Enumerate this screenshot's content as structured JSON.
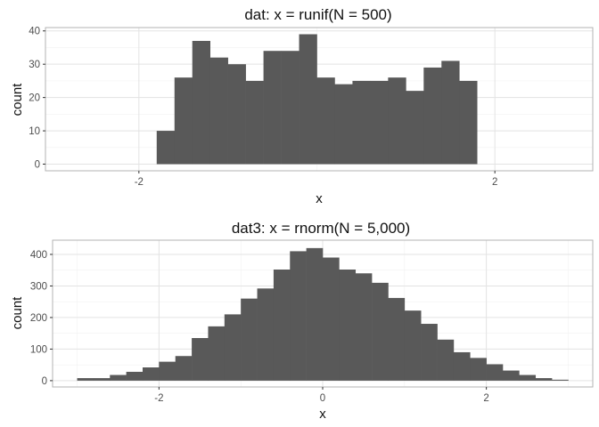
{
  "chart_data": [
    {
      "type": "bar",
      "title": "dat: x = runif(N = 500)",
      "xlabel": "x",
      "ylabel": "count",
      "xlim": [
        -3.05,
        3.1
      ],
      "ylim": [
        -2,
        41
      ],
      "xticks": [
        -2,
        2
      ],
      "yticks": [
        0,
        10,
        20,
        30,
        40
      ],
      "grid": true,
      "bar_color": "#595959",
      "bins": [
        {
          "x0": -1.8,
          "x1": -1.6,
          "count": 10
        },
        {
          "x0": -1.6,
          "x1": -1.4,
          "count": 26
        },
        {
          "x0": -1.4,
          "x1": -1.2,
          "count": 37
        },
        {
          "x0": -1.2,
          "x1": -1.0,
          "count": 32
        },
        {
          "x0": -1.0,
          "x1": -0.8,
          "count": 30
        },
        {
          "x0": -0.8,
          "x1": -0.6,
          "count": 25
        },
        {
          "x0": -0.6,
          "x1": -0.4,
          "count": 34
        },
        {
          "x0": -0.4,
          "x1": -0.2,
          "count": 34
        },
        {
          "x0": -0.2,
          "x1": 0.0,
          "count": 39
        },
        {
          "x0": 0.0,
          "x1": 0.2,
          "count": 26
        },
        {
          "x0": 0.2,
          "x1": 0.4,
          "count": 24
        },
        {
          "x0": 0.4,
          "x1": 0.6,
          "count": 25
        },
        {
          "x0": 0.6,
          "x1": 0.8,
          "count": 25
        },
        {
          "x0": 0.8,
          "x1": 1.0,
          "count": 26
        },
        {
          "x0": 1.0,
          "x1": 1.2,
          "count": 22
        },
        {
          "x0": 1.2,
          "x1": 1.4,
          "count": 29
        },
        {
          "x0": 1.4,
          "x1": 1.6,
          "count": 31
        },
        {
          "x0": 1.6,
          "x1": 1.8,
          "count": 25
        }
      ]
    },
    {
      "type": "bar",
      "title": "dat3: x = rnorm(N = 5,000)",
      "xlabel": "x",
      "ylabel": "count",
      "xlim": [
        -3.3,
        3.3
      ],
      "ylim": [
        -20,
        445
      ],
      "xticks": [
        -2,
        0,
        2
      ],
      "yticks": [
        0,
        100,
        200,
        300,
        400
      ],
      "grid": true,
      "bar_color": "#595959",
      "bins": [
        {
          "x0": -3.0,
          "x1": -2.8,
          "count": 8
        },
        {
          "x0": -2.8,
          "x1": -2.6,
          "count": 8
        },
        {
          "x0": -2.6,
          "x1": -2.4,
          "count": 18
        },
        {
          "x0": -2.4,
          "x1": -2.2,
          "count": 28
        },
        {
          "x0": -2.2,
          "x1": -2.0,
          "count": 42
        },
        {
          "x0": -2.0,
          "x1": -1.8,
          "count": 60
        },
        {
          "x0": -1.8,
          "x1": -1.6,
          "count": 78
        },
        {
          "x0": -1.6,
          "x1": -1.4,
          "count": 135
        },
        {
          "x0": -1.4,
          "x1": -1.2,
          "count": 172
        },
        {
          "x0": -1.2,
          "x1": -1.0,
          "count": 210
        },
        {
          "x0": -1.0,
          "x1": -0.8,
          "count": 260
        },
        {
          "x0": -0.8,
          "x1": -0.6,
          "count": 292
        },
        {
          "x0": -0.6,
          "x1": -0.4,
          "count": 352
        },
        {
          "x0": -0.4,
          "x1": -0.2,
          "count": 410
        },
        {
          "x0": -0.2,
          "x1": 0.0,
          "count": 420
        },
        {
          "x0": 0.0,
          "x1": 0.2,
          "count": 390
        },
        {
          "x0": 0.2,
          "x1": 0.4,
          "count": 352
        },
        {
          "x0": 0.4,
          "x1": 0.6,
          "count": 340
        },
        {
          "x0": 0.6,
          "x1": 0.8,
          "count": 310
        },
        {
          "x0": 0.8,
          "x1": 1.0,
          "count": 262
        },
        {
          "x0": 1.0,
          "x1": 1.2,
          "count": 222
        },
        {
          "x0": 1.2,
          "x1": 1.4,
          "count": 180
        },
        {
          "x0": 1.4,
          "x1": 1.6,
          "count": 130
        },
        {
          "x0": 1.6,
          "x1": 1.8,
          "count": 90
        },
        {
          "x0": 1.8,
          "x1": 2.0,
          "count": 72
        },
        {
          "x0": 2.0,
          "x1": 2.2,
          "count": 52
        },
        {
          "x0": 2.2,
          "x1": 2.4,
          "count": 32
        },
        {
          "x0": 2.4,
          "x1": 2.6,
          "count": 18
        },
        {
          "x0": 2.6,
          "x1": 2.8,
          "count": 8
        },
        {
          "x0": 2.8,
          "x1": 3.0,
          "count": 3
        }
      ]
    }
  ]
}
